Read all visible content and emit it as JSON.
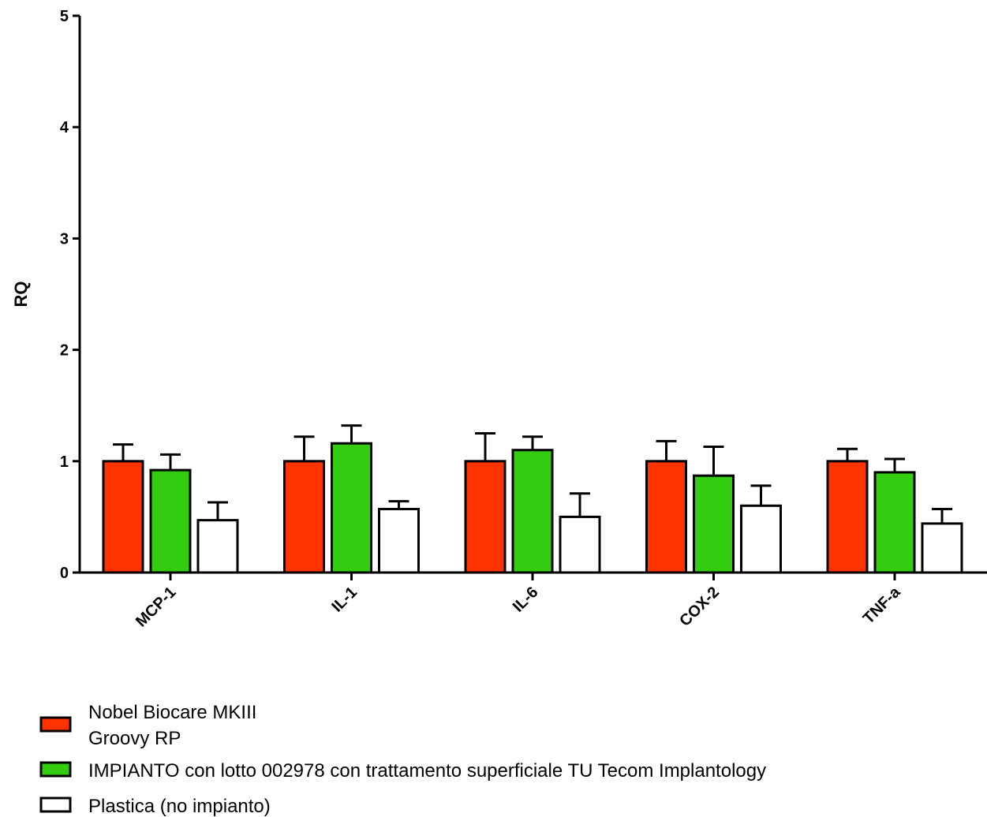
{
  "chart_data": {
    "type": "bar",
    "title": "",
    "xlabel": "",
    "ylabel": "RQ",
    "ylim": [
      0,
      5
    ],
    "yticks": [
      0,
      1,
      2,
      3,
      4,
      5
    ],
    "grid": false,
    "legend_placement": "bottom-left",
    "categories": [
      "MCP-1",
      "IL-1",
      "IL-6",
      "COX-2",
      "TNF-a"
    ],
    "series": [
      {
        "name_lines": [
          "Nobel Biocare MKIII",
          "Groovy RP"
        ],
        "color": "#ff3300",
        "values": [
          1.0,
          1.0,
          1.0,
          1.0,
          1.0
        ],
        "errors": [
          0.15,
          0.22,
          0.25,
          0.18,
          0.11
        ]
      },
      {
        "name_lines": [
          "IMPIANTO con lotto 002978 con trattamento superficiale TU Tecom Implantology"
        ],
        "color": "#33cc11",
        "values": [
          0.92,
          1.16,
          1.1,
          0.87,
          0.9
        ],
        "errors": [
          0.14,
          0.16,
          0.12,
          0.26,
          0.12
        ]
      },
      {
        "name_lines": [
          "Plastica (no impianto)"
        ],
        "color": "#ffffff",
        "values": [
          0.47,
          0.57,
          0.5,
          0.6,
          0.44
        ],
        "errors": [
          0.16,
          0.07,
          0.21,
          0.18,
          0.13
        ]
      }
    ]
  }
}
